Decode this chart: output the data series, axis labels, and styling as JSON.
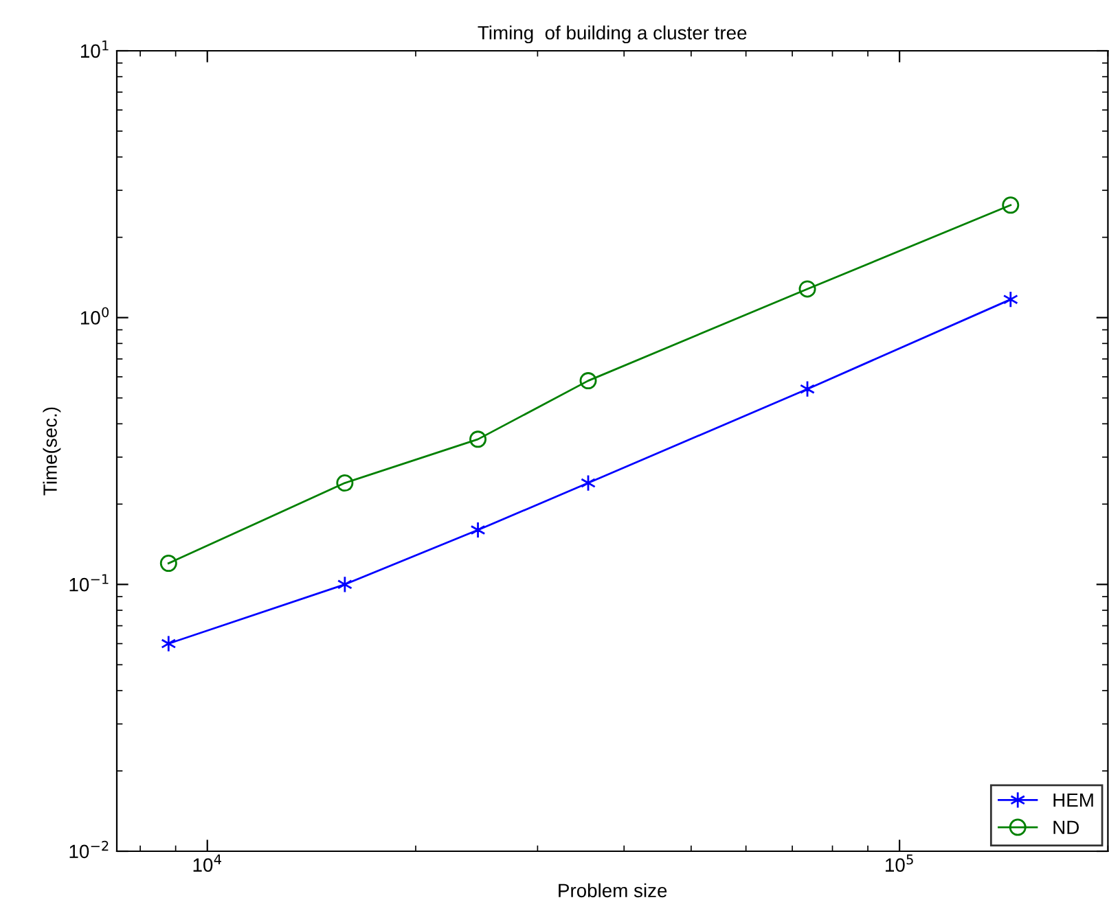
{
  "chart_data": {
    "type": "line",
    "title": "Timing  of building a cluster tree",
    "xlabel": "Problem size",
    "ylabel": "Time(sec.)",
    "x": [
      8790,
      15800,
      24600,
      35500,
      73600,
      144700
    ],
    "series": [
      {
        "name": "HEM",
        "color": "#0000ff",
        "marker": "cross",
        "values": [
          0.06,
          0.1,
          0.16,
          0.24,
          0.54,
          1.17
        ]
      },
      {
        "name": "ND",
        "color": "#008000",
        "marker": "circle",
        "values": [
          0.12,
          0.24,
          0.35,
          0.58,
          1.28,
          2.64
        ]
      }
    ],
    "log": "xy",
    "xlim": [
      7400,
      200000
    ],
    "ylim": [
      0.01,
      10
    ],
    "xticks": [
      {
        "value": 10000,
        "label": "10$^{4}$"
      },
      {
        "value": 100000,
        "label": "10$^{5}$"
      }
    ],
    "yticks": [
      {
        "value": 0.01,
        "label": "10$^{−2}$"
      },
      {
        "value": 0.1,
        "label": "10$^{−1}$"
      },
      {
        "value": 1,
        "label": "10$^{0}$"
      },
      {
        "value": 10,
        "label": "10$^{1}$"
      }
    ],
    "grid": false,
    "legend": "bottom right",
    "line_style": "solid"
  }
}
